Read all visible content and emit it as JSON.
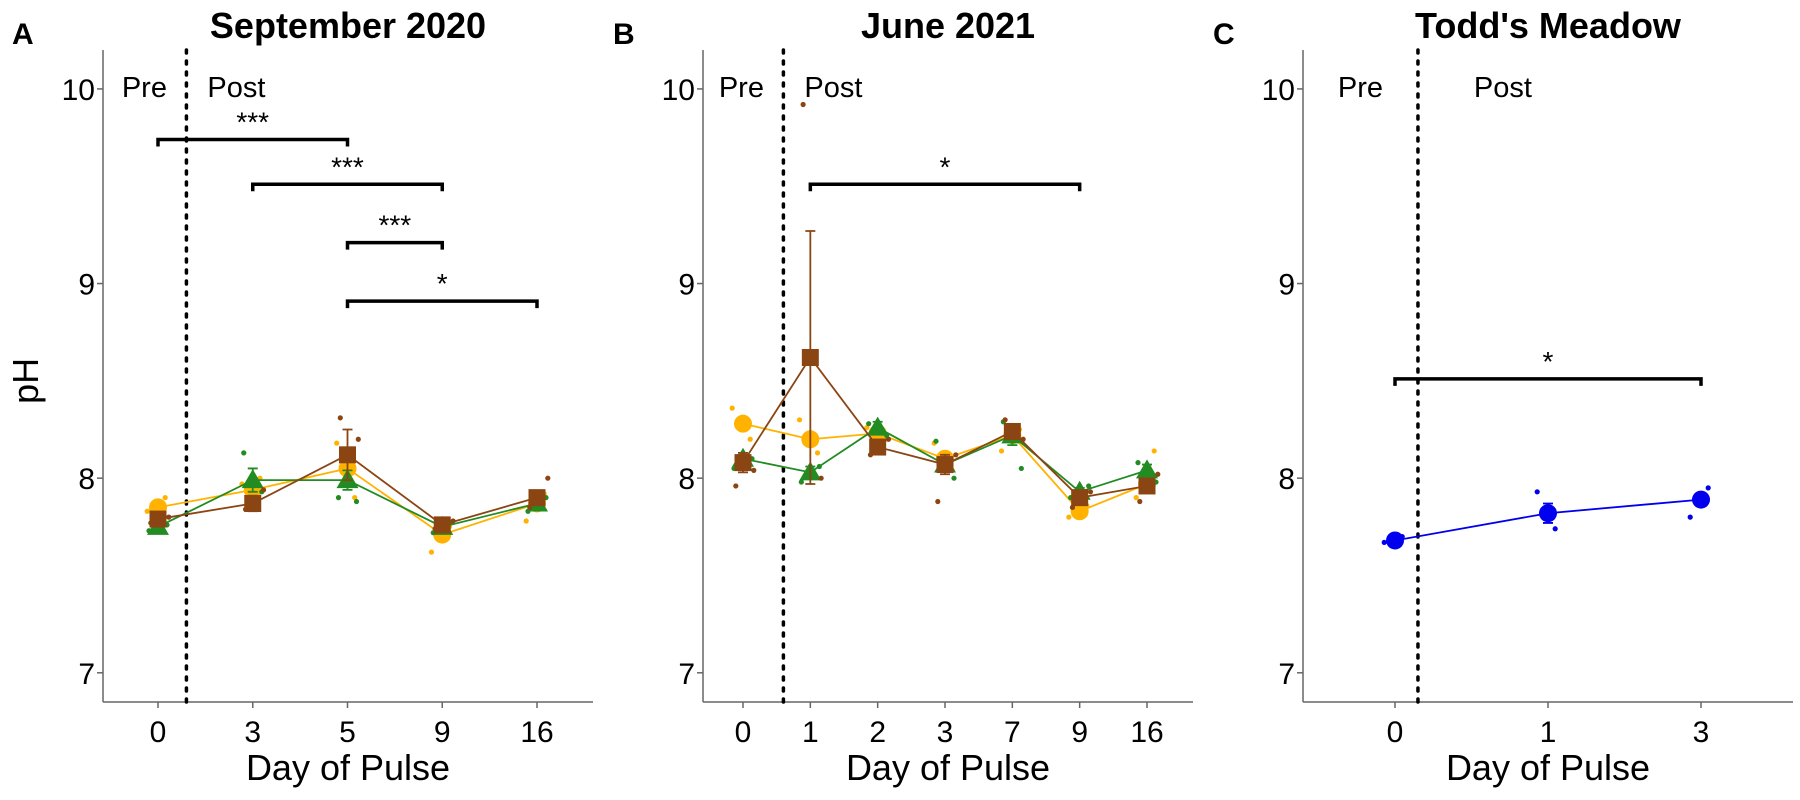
{
  "figure": {
    "ylabel": "pH",
    "phase_labels": {
      "pre": "Pre",
      "post": "Post"
    }
  },
  "colors": {
    "yellow": "#FFB300",
    "green": "#228B22",
    "brown": "#8B4513",
    "blue": "#0000EE",
    "axis": "#666666",
    "text": "#000000"
  },
  "chart_data": [
    {
      "panel": "A",
      "type": "line",
      "title": "September 2020",
      "xlabel": "Day of Pulse",
      "ylabel": "pH",
      "categories": [
        "0",
        "3",
        "5",
        "9",
        "16"
      ],
      "ylim": [
        6.85,
        10.2
      ],
      "yticks": [
        7,
        8,
        9,
        10
      ],
      "pre_post_divider_after_index": 0.3,
      "series": [
        {
          "marker": "circle",
          "color_key": "yellow",
          "values": [
            7.85,
            7.94,
            8.05,
            7.71,
            7.87
          ],
          "errors": [
            0.02,
            0.02,
            0.05,
            0.03,
            0.02
          ],
          "points": [
            [
              7.83,
              7.9
            ],
            [
              7.97,
              8.0
            ],
            [
              8.18,
              7.9
            ],
            [
              7.62,
              7.75
            ],
            [
              7.78,
              7.92
            ]
          ]
        },
        {
          "marker": "triangle",
          "color_key": "green",
          "values": [
            7.75,
            7.99,
            7.99,
            7.75,
            7.87
          ],
          "errors": [
            0.02,
            0.06,
            0.05,
            0.02,
            0.02
          ],
          "points": [
            [
              7.73,
              7.76
            ],
            [
              8.13,
              7.93
            ],
            [
              7.9,
              7.88
            ],
            [
              7.72,
              7.77
            ],
            [
              7.83,
              7.9
            ]
          ]
        },
        {
          "marker": "square",
          "color_key": "brown",
          "values": [
            7.79,
            7.87,
            8.12,
            7.76,
            7.9
          ],
          "errors": [
            0.02,
            0.04,
            0.13,
            0.02,
            0.02
          ],
          "points": [
            [
              7.77,
              7.8
            ],
            [
              7.84,
              7.94
            ],
            [
              8.31,
              8.2
            ],
            [
              7.74,
              7.78
            ],
            [
              7.85,
              8.0
            ]
          ]
        }
      ],
      "significance": [
        {
          "from": "0",
          "to": "5",
          "y": 9.74,
          "label": "***"
        },
        {
          "from": "3",
          "to": "9",
          "y": 9.51,
          "label": "***"
        },
        {
          "from": "5",
          "to": "9",
          "y": 9.21,
          "label": "***"
        },
        {
          "from": "5",
          "to": "16",
          "y": 8.91,
          "label": "*"
        }
      ]
    },
    {
      "panel": "B",
      "type": "line",
      "title": "June 2021",
      "xlabel": "Day of Pulse",
      "ylabel": "",
      "categories": [
        "0",
        "1",
        "2",
        "3",
        "7",
        "9",
        "16"
      ],
      "ylim": [
        6.85,
        10.2
      ],
      "yticks": [
        7,
        8,
        9,
        10
      ],
      "pre_post_divider_after_index": 0.6,
      "series": [
        {
          "marker": "circle",
          "color_key": "yellow",
          "values": [
            8.28,
            8.2,
            8.23,
            8.1,
            8.22,
            7.83,
            7.97
          ],
          "errors": [
            0.03,
            0.03,
            0.02,
            0.03,
            0.02,
            0.02,
            0.02
          ],
          "points": [
            [
              8.36,
              8.2
            ],
            [
              8.3,
              8.13
            ],
            [
              8.26,
              8.2
            ],
            [
              8.18,
              8.04
            ],
            [
              8.14,
              8.25
            ],
            [
              7.8,
              7.86
            ],
            [
              7.9,
              8.14
            ]
          ]
        },
        {
          "marker": "triangle",
          "color_key": "green",
          "values": [
            8.1,
            8.03,
            8.26,
            8.07,
            8.22,
            7.93,
            8.04
          ],
          "errors": [
            0.02,
            0.03,
            0.03,
            0.03,
            0.05,
            0.02,
            0.03
          ],
          "points": [
            [
              8.05,
              8.1
            ],
            [
              7.98,
              8.06
            ],
            [
              8.28,
              8.22
            ],
            [
              8.19,
              8.0
            ],
            [
              8.29,
              8.05
            ],
            [
              7.9,
              7.96
            ],
            [
              8.08,
              7.98
            ]
          ]
        },
        {
          "marker": "square",
          "color_key": "brown",
          "values": [
            8.08,
            8.62,
            8.16,
            8.07,
            8.24,
            7.9,
            7.96
          ],
          "errors": [
            0.05,
            0.65,
            0.03,
            0.05,
            0.02,
            0.02,
            0.03
          ],
          "points": [
            [
              7.96,
              8.04
            ],
            [
              9.92,
              8.0
            ],
            [
              8.12,
              8.2
            ],
            [
              7.88,
              8.12
            ],
            [
              8.3,
              8.2
            ],
            [
              7.85,
              7.93
            ],
            [
              7.88,
              8.02
            ]
          ]
        }
      ],
      "significance": [
        {
          "from": "1",
          "to": "9",
          "y": 9.51,
          "label": "*"
        }
      ]
    },
    {
      "panel": "C",
      "type": "line",
      "title": "Todd's Meadow",
      "xlabel": "Day of Pulse",
      "ylabel": "",
      "categories": [
        "0",
        "1",
        "3"
      ],
      "ylim": [
        6.85,
        10.2
      ],
      "yticks": [
        7,
        8,
        9,
        10
      ],
      "pre_post_divider_after_index": 0.15,
      "series": [
        {
          "marker": "circle",
          "color_key": "blue",
          "values": [
            7.68,
            7.82,
            7.89
          ],
          "errors": [
            0.01,
            0.05,
            0.03
          ],
          "points": [
            [
              7.67,
              7.7
            ],
            [
              7.93,
              7.74
            ],
            [
              7.8,
              7.95
            ]
          ]
        }
      ],
      "significance": [
        {
          "from": "0",
          "to": "3",
          "y": 8.51,
          "label": "*"
        }
      ]
    }
  ]
}
